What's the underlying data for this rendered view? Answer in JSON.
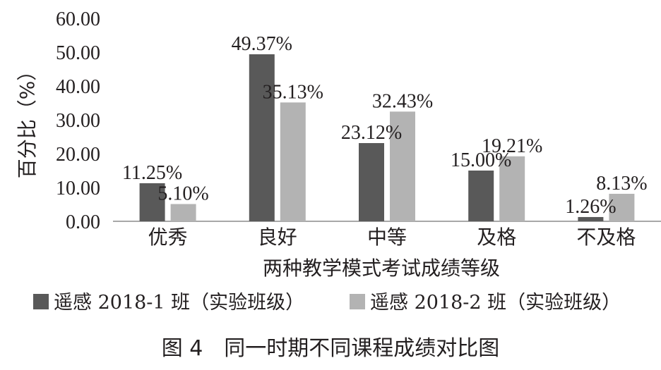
{
  "chart_data": {
    "type": "bar",
    "title": "",
    "caption": "图 4　同一时期不同课程成绩对比图",
    "xlabel": "两种教学模式考试成绩等级",
    "ylabel": "百分比（%）",
    "ylim": [
      0,
      60
    ],
    "yticks": [
      "0.00",
      "10.00",
      "20.00",
      "30.00",
      "40.00",
      "50.00",
      "60.00"
    ],
    "categories": [
      "优秀",
      "良好",
      "中等",
      "及格",
      "不及格"
    ],
    "series": [
      {
        "name": "遥感 2018-1 班（实验班级）",
        "color": "#595959",
        "values": [
          11.25,
          49.37,
          23.12,
          15.0,
          1.26
        ],
        "labels": [
          "11.25%",
          "49.37%",
          "23.12%",
          "15.00%",
          "1.26%"
        ]
      },
      {
        "name": "遥感 2018-2 班（实验班级）",
        "color": "#b3b3b3",
        "values": [
          5.1,
          35.13,
          32.43,
          19.21,
          8.13
        ],
        "labels": [
          "5.10%",
          "35.13%",
          "32.43%",
          "19.21%",
          "8.13%"
        ]
      }
    ],
    "grid": false,
    "legend_position": "bottom"
  }
}
